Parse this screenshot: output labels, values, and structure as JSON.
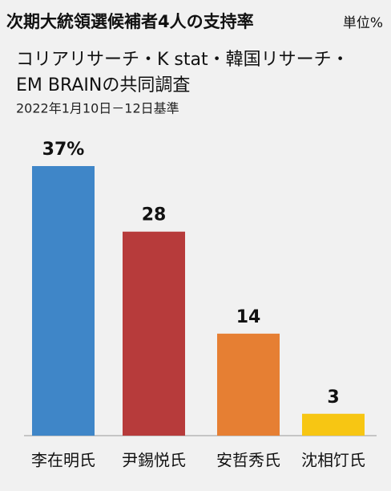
{
  "chart_data": {
    "type": "bar",
    "title": "次期大統領選候補者4人の支持率",
    "unit": "単位%",
    "subtitle": [
      "コリアリサーチ・K stat・韓国リサーチ・",
      "EM BRAINの共同調査"
    ],
    "note": "2022年1月10日－12日基準",
    "categories": [
      "李在明氏",
      "尹錫悦氏",
      "安哲秀氏",
      "沈相饤氏"
    ],
    "values": [
      37,
      28,
      14,
      3
    ],
    "value_labels": [
      "37%",
      "28",
      "14",
      "3"
    ],
    "colors": [
      "#3f86c8",
      "#b73b3b",
      "#e67f33",
      "#f7c613"
    ]
  }
}
